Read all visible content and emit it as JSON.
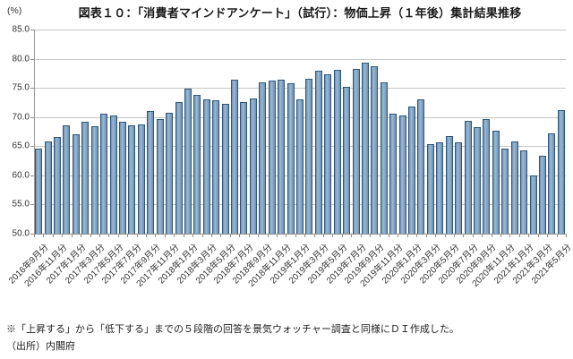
{
  "header": {
    "unit_label": "(%)"
  },
  "footer": {
    "note": "※「上昇する」から「低下する」までの５段階の回答を景気ウォッチャー調査と同様にＤＩ作成した。",
    "source": "（出所）内閣府"
  },
  "chart_data": {
    "type": "bar",
    "title": "図表１０：「消費者マインドアンケート」（試行）：物価上昇（１年後）集計結果推移",
    "ylabel": "(%)",
    "xlabel": "",
    "ylim": [
      50.0,
      85.0
    ],
    "ytick_labels": [
      "85.0",
      "80.0",
      "75.0",
      "70.0",
      "65.0",
      "60.0",
      "55.0",
      "50.0"
    ],
    "grid": true,
    "legend": "none",
    "bar_color": "#7B9DBF",
    "bar_border_color": "#2F577A",
    "gridline_color": "#C6C6C6",
    "categories": [
      "2016年9月分",
      "2016年10月分",
      "2016年11月分",
      "2016年12月分",
      "2017年1月分",
      "2017年2月分",
      "2017年3月分",
      "2017年4月分",
      "2017年5月分",
      "2017年6月分",
      "2017年7月分",
      "2017年8月分",
      "2017年9月分",
      "2017年10月分",
      "2017年11月分",
      "2017年12月分",
      "2018年1月分",
      "2018年2月分",
      "2018年3月分",
      "2018年4月分",
      "2018年5月分",
      "2018年6月分",
      "2018年7月分",
      "2018年8月分",
      "2018年9月分",
      "2018年10月分",
      "2018年11月分",
      "2018年12月分",
      "2019年1月分",
      "2019年2月分",
      "2019年3月分",
      "2019年4月分",
      "2019年5月分",
      "2019年6月分",
      "2019年7月分",
      "2019年8月分",
      "2019年9月分",
      "2019年10月分",
      "2019年11月分",
      "2019年12月分",
      "2020年1月分",
      "2020年2月分",
      "2020年3月分",
      "2020年4月分",
      "2020年5月分",
      "2020年6月分",
      "2020年7月分",
      "2020年8月分",
      "2020年9月分",
      "2020年10月分",
      "2020年11月分",
      "2020年12月分",
      "2021年1月分",
      "2021年2月分",
      "2021年3月分",
      "2021年4月分",
      "2021年5月分"
    ],
    "values": [
      64.6,
      65.8,
      66.6,
      68.5,
      67.1,
      69.2,
      68.4,
      70.5,
      70.2,
      69.2,
      68.5,
      68.7,
      71.1,
      69.6,
      70.7,
      72.5,
      74.9,
      73.8,
      73.0,
      72.8,
      72.2,
      76.4,
      72.6,
      73.2,
      76.0,
      76.2,
      76.4,
      75.8,
      73.1,
      76.5,
      77.9,
      77.3,
      78.1,
      75.2,
      78.3,
      79.3,
      78.7,
      76.0,
      70.5,
      70.2,
      71.8,
      73.0,
      65.4,
      65.7,
      66.8,
      65.7,
      69.4,
      68.2,
      69.6,
      67.7,
      64.6,
      65.8,
      64.3,
      60.0,
      63.4,
      67.2,
      71.2
    ],
    "xtick_labels": [
      "2016年9月分",
      "2016年11月分",
      "2017年1月分",
      "2017年3月分",
      "2017年5月分",
      "2017年7月分",
      "2017年9月分",
      "2017年11月分",
      "2018年1月分",
      "2018年3月分",
      "2018年5月分",
      "2018年7月分",
      "2018年9月分",
      "2018年11月分",
      "2019年1月分",
      "2019年3月分",
      "2019年5月分",
      "2019年7月分",
      "2019年9月分",
      "2019年11月分",
      "2020年1月分",
      "2020年3月分",
      "2020年5月分",
      "2020年7月分",
      "2020年9月分",
      "2020年11月分",
      "2021年1月分",
      "2021年3月分",
      "2021年5月分"
    ],
    "xtick_every": 2
  }
}
